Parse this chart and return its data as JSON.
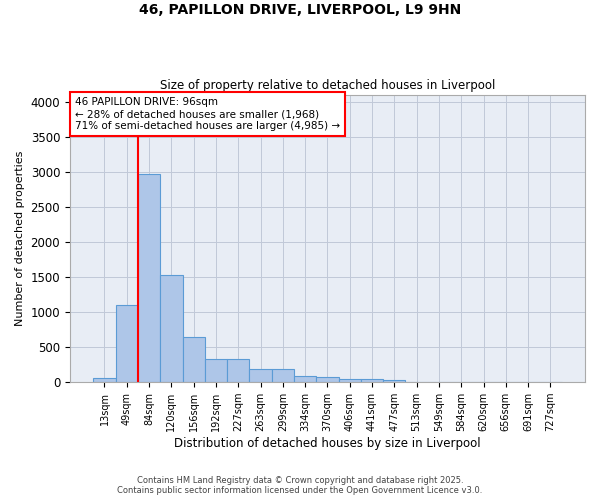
{
  "title1": "46, PAPILLON DRIVE, LIVERPOOL, L9 9HN",
  "title2": "Size of property relative to detached houses in Liverpool",
  "xlabel": "Distribution of detached houses by size in Liverpool",
  "ylabel": "Number of detached properties",
  "footer": "Contains HM Land Registry data © Crown copyright and database right 2025.\nContains public sector information licensed under the Open Government Licence v3.0.",
  "bin_labels": [
    "13sqm",
    "49sqm",
    "84sqm",
    "120sqm",
    "156sqm",
    "192sqm",
    "227sqm",
    "263sqm",
    "299sqm",
    "334sqm",
    "370sqm",
    "406sqm",
    "441sqm",
    "477sqm",
    "513sqm",
    "549sqm",
    "584sqm",
    "620sqm",
    "656sqm",
    "691sqm",
    "727sqm"
  ],
  "bar_values": [
    60,
    1100,
    2970,
    1530,
    650,
    325,
    325,
    185,
    185,
    90,
    75,
    45,
    45,
    30,
    0,
    0,
    0,
    0,
    0,
    0,
    0
  ],
  "bar_color": "#aec6e8",
  "bar_edge_color": "#5b9bd5",
  "grid_color": "#c0c8d8",
  "bg_color": "#e8edf5",
  "annotation_box_text": "46 PAPILLON DRIVE: 96sqm\n← 28% of detached houses are smaller (1,968)\n71% of semi-detached houses are larger (4,985) →",
  "vline_x": 1.5,
  "vline_color": "red",
  "ylim": [
    0,
    4100
  ],
  "yticks": [
    0,
    500,
    1000,
    1500,
    2000,
    2500,
    3000,
    3500,
    4000
  ]
}
